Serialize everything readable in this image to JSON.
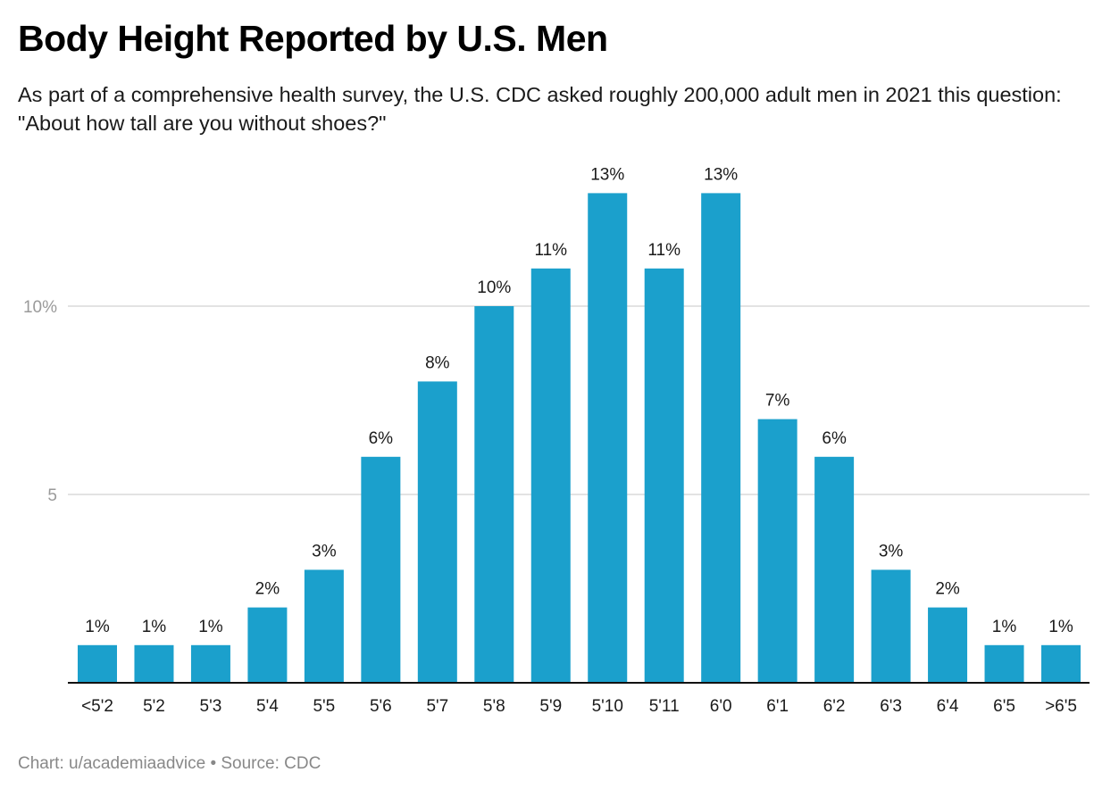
{
  "header": {
    "title": "Body Height Reported by U.S. Men",
    "subtitle": "As part of a comprehensive health survey, the U.S. CDC asked roughly 200,000 adult men in 2021 this question: \"About how tall are you without shoes?\""
  },
  "footer": {
    "credit": "Chart: u/academiaadvice • Source: CDC"
  },
  "colors": {
    "bar": "#1ba0cc",
    "gridline": "#e3e3e3",
    "axis": "#111111",
    "tick_label": "#9a9a9a"
  },
  "chart_data": {
    "type": "bar",
    "title": "Body Height Reported by U.S. Men",
    "subtitle": "As part of a comprehensive health survey, the U.S. CDC asked roughly 200,000 adult men in 2021 this question: \"About how tall are you without shoes?\"",
    "xlabel": "",
    "ylabel": "",
    "categories": [
      "<5'2",
      "5'2",
      "5'3",
      "5'4",
      "5'5",
      "5'6",
      "5'7",
      "5'8",
      "5'9",
      "5'10",
      "5'11",
      "6'0",
      "6'1",
      "6'2",
      "6'3",
      "6'4",
      "6'5",
      ">6'5"
    ],
    "values": [
      1,
      1,
      1,
      2,
      3,
      6,
      8,
      10,
      11,
      13,
      11,
      13,
      7,
      6,
      3,
      2,
      1,
      1
    ],
    "value_labels": [
      "1%",
      "1%",
      "1%",
      "2%",
      "3%",
      "6%",
      "8%",
      "10%",
      "11%",
      "13%",
      "11%",
      "13%",
      "7%",
      "6%",
      "3%",
      "2%",
      "1%",
      "1%"
    ],
    "unit": "%",
    "ylim": [
      0,
      14.8
    ],
    "yticks": [
      {
        "value": 5,
        "label": "5"
      },
      {
        "value": 10,
        "label": "10%"
      }
    ],
    "grid": true,
    "legend": "none",
    "source": "Chart: u/academiaadvice • Source: CDC"
  }
}
